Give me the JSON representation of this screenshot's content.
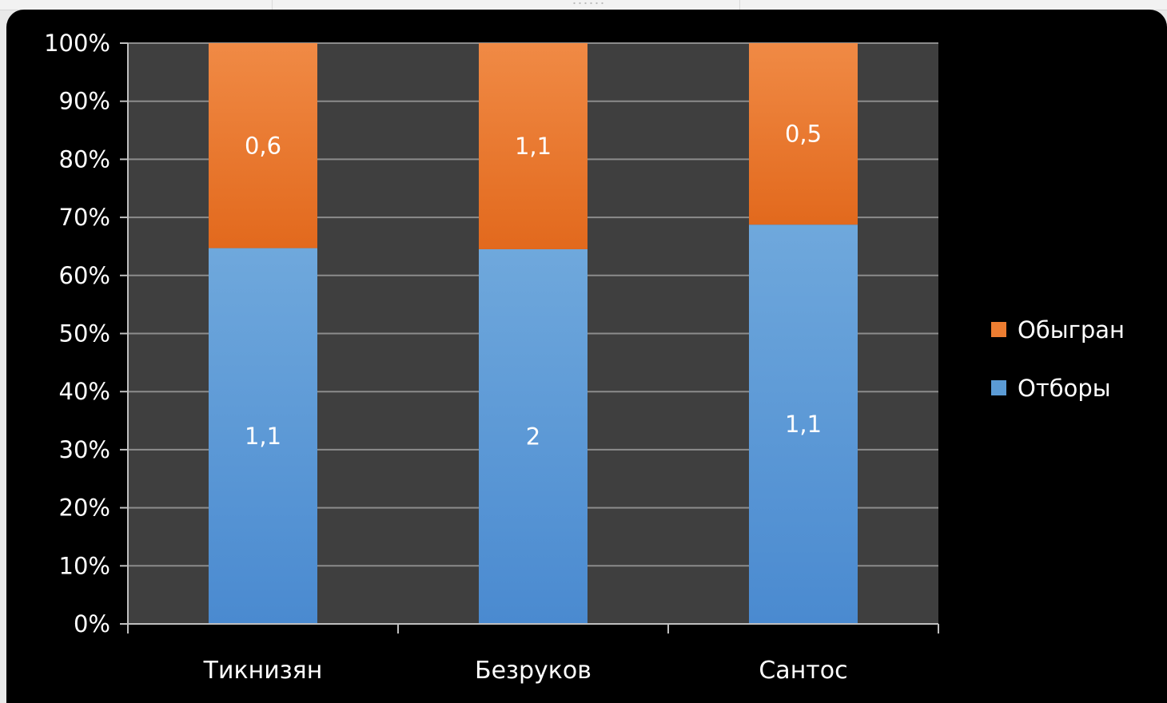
{
  "chart_data": {
    "type": "bar",
    "stacking": "percent",
    "categories": [
      "Тикнизян",
      "Безруков",
      "Сантос"
    ],
    "series": [
      {
        "name": "Отборы",
        "values": [
          1.1,
          2,
          1.1
        ],
        "labels": [
          "1,1",
          "2",
          "1,1"
        ],
        "color": "#5b9bd5"
      },
      {
        "name": "Обыгран",
        "values": [
          0.6,
          1.1,
          0.5
        ],
        "labels": [
          "0,6",
          "1,1",
          "0,5"
        ],
        "color": "#ed7d31"
      }
    ],
    "y_ticks": [
      "0%",
      "10%",
      "20%",
      "30%",
      "40%",
      "50%",
      "60%",
      "70%",
      "80%",
      "90%",
      "100%"
    ],
    "ylim": [
      0,
      100
    ],
    "grid": true,
    "legend": {
      "position": "right",
      "order": [
        "Обыгран",
        "Отборы"
      ]
    },
    "title": "",
    "xlabel": "",
    "ylabel": "",
    "colors": {
      "background": "#000000",
      "plot_area": "#3f3f3f",
      "gridline": "#8c8c8c",
      "axis": "#bfbfbf",
      "text": "#ffffff"
    }
  }
}
